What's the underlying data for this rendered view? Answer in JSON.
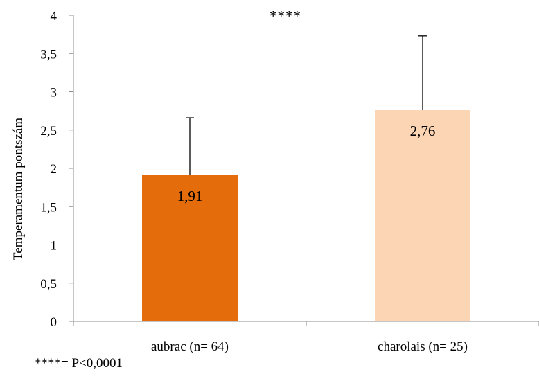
{
  "chart_data": {
    "type": "bar",
    "categories": [
      "aubrac (n= 64)",
      "charolais (n= 25)"
    ],
    "values": [
      1.91,
      2.76
    ],
    "data_labels": [
      "1,91",
      "2,76"
    ],
    "error_upper": [
      2.66,
      3.73
    ],
    "ylabel": "Temperamentum pontszám",
    "ylim": [
      0,
      4
    ],
    "yticks": [
      0,
      0.5,
      1,
      1.5,
      2,
      2.5,
      3,
      3.5,
      4
    ],
    "ytick_labels": [
      "0",
      "0,5",
      "1",
      "1,5",
      "2",
      "2,5",
      "3",
      "3,5",
      "4"
    ],
    "significance": "****",
    "footnote": "****= P<0,0001",
    "grid": false,
    "colors": [
      "#e46c0a",
      "#fcd5b5"
    ],
    "axis_color": "#8c8c8c",
    "error_bar_color": "#000000"
  }
}
